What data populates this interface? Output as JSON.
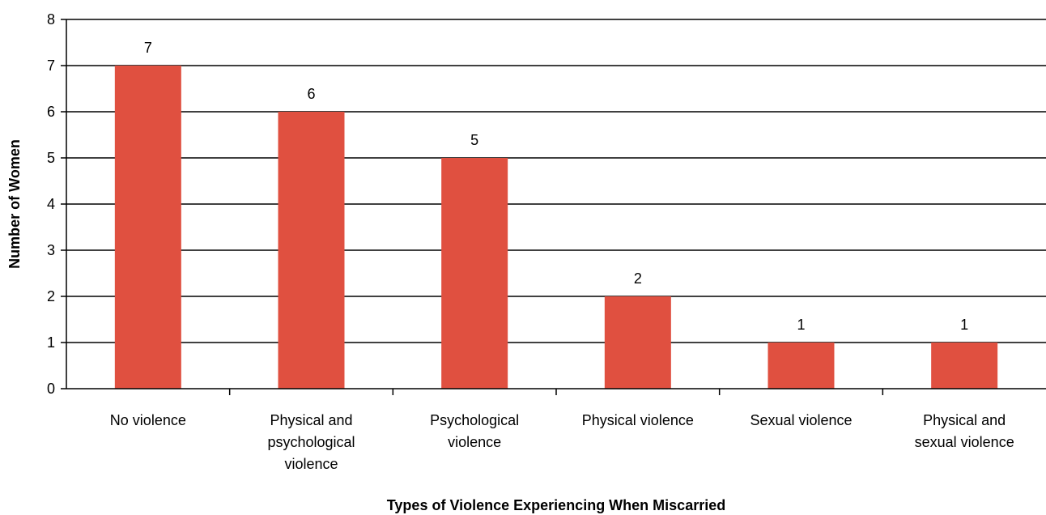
{
  "chart_data": {
    "type": "bar",
    "title": "",
    "xlabel": "Types of Violence Experiencing When Miscarried",
    "ylabel": "Number of Women",
    "ylim": [
      0,
      8
    ],
    "yticks": [
      0,
      1,
      2,
      3,
      4,
      5,
      6,
      7,
      8
    ],
    "grid": true,
    "categories": [
      [
        "No violence"
      ],
      [
        "Physical and",
        "psychological",
        "violence"
      ],
      [
        "Psychological",
        "violence"
      ],
      [
        "Physical violence"
      ],
      [
        "Sexual violence"
      ],
      [
        "Physical and",
        "sexual violence"
      ]
    ],
    "values": [
      7,
      6,
      5,
      2,
      1,
      1
    ],
    "bar_color": "#e05040",
    "data_labels": [
      "7",
      "6",
      "5",
      "2",
      "1",
      "1"
    ]
  }
}
